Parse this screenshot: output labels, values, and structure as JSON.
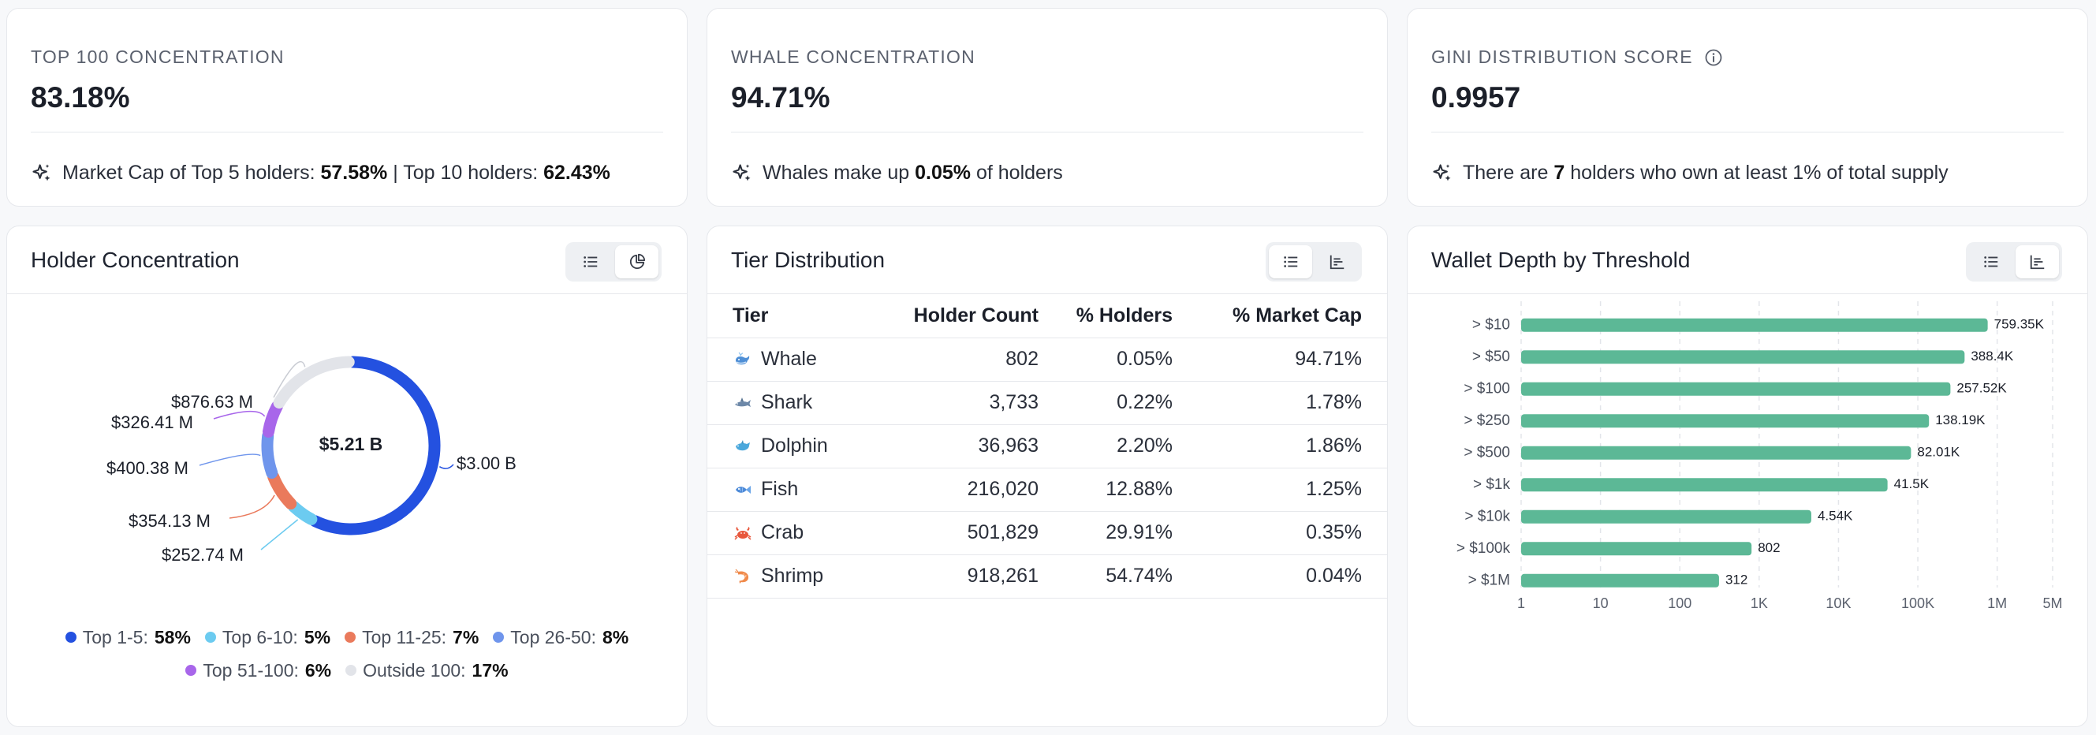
{
  "stats": [
    {
      "title": "TOP 100 CONCENTRATION",
      "value": "83.18%",
      "foot_pre": "Market Cap of Top 5 holders: ",
      "foot_b1": "57.58%",
      "foot_mid": " | Top 10 holders: ",
      "foot_b2": "62.43%"
    },
    {
      "title": "WHALE CONCENTRATION",
      "value": "94.71%",
      "foot_pre": "Whales make up ",
      "foot_b1": "0.05%",
      "foot_mid": " of holders"
    },
    {
      "title": "GINI DISTRIBUTION SCORE",
      "value": "0.9957",
      "foot_pre": "There are ",
      "foot_b1": "7",
      "foot_mid": " holders who own at least 1% of total supply"
    }
  ],
  "holder_concentration": {
    "title": "Holder Concentration",
    "center_label": "$5.21 B",
    "slices": [
      {
        "name": "Top 1-5",
        "pct": 58,
        "value_label": "$3.00 B",
        "color": "#2451e0"
      },
      {
        "name": "Top 6-10",
        "pct": 5,
        "value_label": "$252.74 M",
        "color": "#6ccbf0"
      },
      {
        "name": "Top 11-25",
        "pct": 7,
        "value_label": "$354.13 M",
        "color": "#ea7a5c"
      },
      {
        "name": "Top 26-50",
        "pct": 8,
        "value_label": "$400.38 M",
        "color": "#6f95ec"
      },
      {
        "name": "Top 51-100",
        "pct": 6,
        "value_label": "$326.41 M",
        "color": "#a866ea"
      },
      {
        "name": "Outside 100",
        "pct": 17,
        "value_label": "$876.63 M",
        "color": "#e2e4e9"
      }
    ],
    "legend": [
      {
        "label": "Top 1-5:",
        "value": "58%"
      },
      {
        "label": "Top 6-10:",
        "value": "5%"
      },
      {
        "label": "Top 11-25:",
        "value": "7%"
      },
      {
        "label": "Top 26-50:",
        "value": "8%"
      },
      {
        "label": "Top 51-100:",
        "value": "6%"
      },
      {
        "label": "Outside 100:",
        "value": "17%"
      }
    ]
  },
  "tier_distribution": {
    "title": "Tier Distribution",
    "columns": [
      "Tier",
      "Holder Count",
      "% Holders",
      "% Market Cap"
    ],
    "rows": [
      {
        "icon": "whale-icon",
        "tier": "Whale",
        "count": "802",
        "holders": "0.05%",
        "mcap": "94.71%"
      },
      {
        "icon": "shark-icon",
        "tier": "Shark",
        "count": "3,733",
        "holders": "0.22%",
        "mcap": "1.78%"
      },
      {
        "icon": "dolphin-icon",
        "tier": "Dolphin",
        "count": "36,963",
        "holders": "2.20%",
        "mcap": "1.86%"
      },
      {
        "icon": "fish-icon",
        "tier": "Fish",
        "count": "216,020",
        "holders": "12.88%",
        "mcap": "1.25%"
      },
      {
        "icon": "crab-icon",
        "tier": "Crab",
        "count": "501,829",
        "holders": "29.91%",
        "mcap": "0.35%"
      },
      {
        "icon": "shrimp-icon",
        "tier": "Shrimp",
        "count": "918,261",
        "holders": "54.74%",
        "mcap": "0.04%"
      }
    ]
  },
  "wallet_depth": {
    "title": "Wallet Depth by Threshold",
    "bar_color": "#5cb896"
  },
  "chart_data": [
    {
      "type": "pie",
      "title": "Holder Concentration",
      "center_label": "$5.21 B",
      "categories": [
        "Top 1-5",
        "Top 6-10",
        "Top 11-25",
        "Top 26-50",
        "Top 51-100",
        "Outside 100"
      ],
      "values": [
        58,
        5,
        7,
        8,
        6,
        17
      ],
      "value_labels": [
        "$3.00 B",
        "$252.74 M",
        "$354.13 M",
        "$400.38 M",
        "$326.41 M",
        "$876.63 M"
      ]
    },
    {
      "type": "bar",
      "orientation": "horizontal",
      "title": "Wallet Depth by Threshold",
      "x_scale": "log",
      "xlim": [
        1,
        5000000
      ],
      "x_ticks": [
        1,
        10,
        100,
        1000,
        10000,
        100000,
        1000000,
        5000000
      ],
      "x_tick_labels": [
        "1",
        "10",
        "100",
        "1K",
        "10K",
        "100K",
        "1M",
        "5M"
      ],
      "categories": [
        "> $10",
        "> $50",
        "> $100",
        "> $250",
        "> $500",
        "> $1k",
        "> $10k",
        "> $100k",
        "> $1M"
      ],
      "values": [
        759350,
        388400,
        257520,
        138190,
        82010,
        41500,
        4540,
        802,
        312
      ],
      "value_labels": [
        "759.35K",
        "388.4K",
        "257.52K",
        "138.19K",
        "82.01K",
        "41.5K",
        "4.54K",
        "802",
        "312"
      ],
      "grid": "vertical dashed"
    }
  ]
}
